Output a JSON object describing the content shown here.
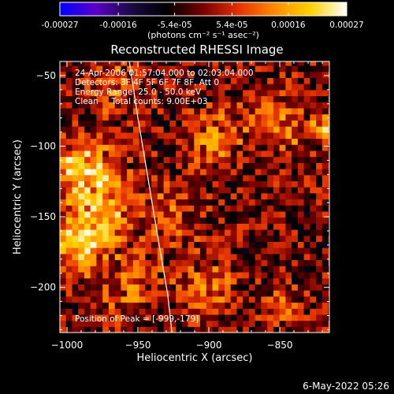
{
  "colorbar": {
    "ticks": [
      "-0.00027",
      "-0.00016",
      "-5.4e-05",
      "5.4e-05",
      "0.00016",
      "0.00027"
    ],
    "tick_values": [
      -0.00027,
      -0.00016,
      -5.4e-05,
      5.4e-05,
      0.00016,
      0.00027
    ],
    "range": [
      -0.00027,
      0.00027
    ],
    "units_label": "(photons cm⁻² s⁻¹ asec⁻²)",
    "colors": [
      "#0000ff",
      "#5a00c8",
      "#1a0a40",
      "#000000",
      "#780000",
      "#e63200",
      "#ff8c00",
      "#ffd200",
      "#ffffff"
    ]
  },
  "chart_data": {
    "type": "heatmap",
    "title": "Reconstructed RHESSI Image",
    "xlabel": "Heliocentric X (arcsec)",
    "ylabel": "Heliocentric Y (arcsec)",
    "xlim": [
      -1005,
      -815
    ],
    "ylim": [
      -232,
      -40
    ],
    "xticks": [
      -1000,
      -950,
      -900,
      -850
    ],
    "xtick_labels": [
      "−1000",
      "−950",
      "−900",
      "−850"
    ],
    "yticks": [
      -50,
      -100,
      -150,
      -200
    ],
    "ytick_labels": [
      "−50",
      "−100",
      "−150",
      "−200"
    ],
    "value_range": [
      -0.00027,
      0.00027
    ],
    "peak": {
      "x": -999,
      "y": -179
    },
    "limb_curve": {
      "x": [
        -956,
        -950,
        -945,
        -940,
        -935,
        -929,
        -926
      ],
      "y": [
        -40,
        -80,
        -110,
        -140,
        -170,
        -205,
        -232
      ]
    }
  },
  "annotations": {
    "time_range": "24-Apr-2006 01:57:04.000 to 02:03:04.000",
    "detectors": "Detectors: 3F 4F 5F 6F 7F 8F, Att 0",
    "energy": "Energy Range: 25.0 - 50.0 keV",
    "clean": "Clean     Total counts: 9.00E+03",
    "peak_position": "Position of Peak = [-999,-179]"
  },
  "footer": {
    "timestamp": "6-May-2022 05:26"
  }
}
